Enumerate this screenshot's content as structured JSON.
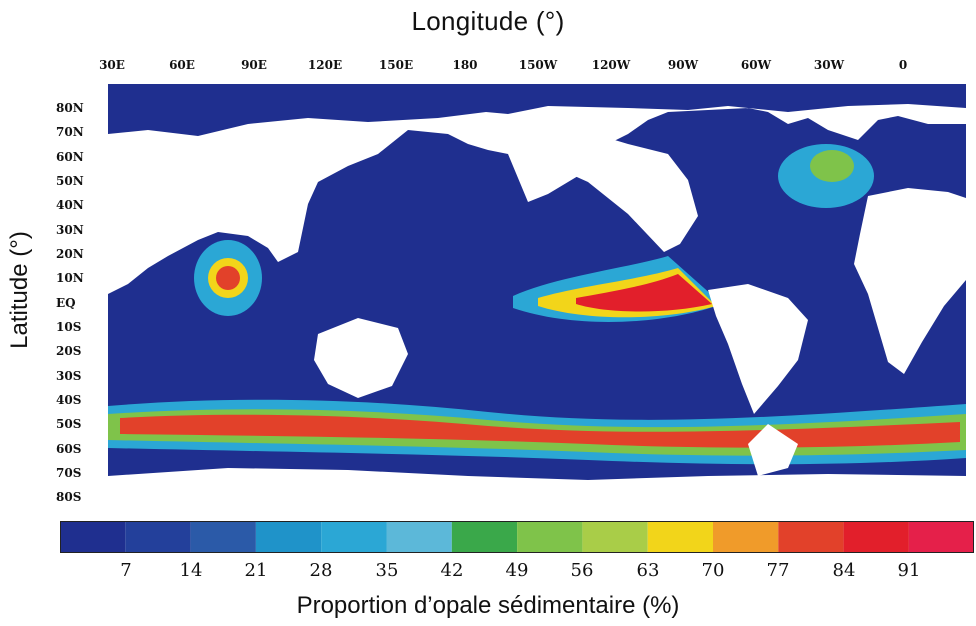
{
  "figure": {
    "x_axis_title": "Longitude (°)",
    "y_axis_title": "Latitude (°)",
    "colorbar_title": "Proportion d’opale sédimentaire (%)"
  },
  "longitude_labels": [
    "30E",
    "60E",
    "90E",
    "120E",
    "150E",
    "180",
    "150W",
    "120W",
    "90W",
    "60W",
    "30W",
    "0"
  ],
  "latitude_labels": [
    "80N",
    "70N",
    "60N",
    "50N",
    "40N",
    "30N",
    "20N",
    "10N",
    "EQ",
    "10S",
    "20S",
    "30S",
    "40S",
    "50S",
    "60S",
    "70S",
    "80S"
  ],
  "colorbar": {
    "tick_labels": [
      "7",
      "14",
      "21",
      "28",
      "35",
      "42",
      "49",
      "56",
      "63",
      "70",
      "77",
      "84",
      "91"
    ],
    "colors": [
      "#1f2f8f",
      "#23409b",
      "#2b5aa8",
      "#1f93c9",
      "#2ba7d5",
      "#5cb8d9",
      "#3aa84a",
      "#7fc34a",
      "#a9cd48",
      "#f2d51a",
      "#f09b2a",
      "#e2412a",
      "#e21f2b",
      "#e5204a"
    ]
  },
  "colors": {
    "ocean_background": "#1f2f8f",
    "land": "#ffffff"
  }
}
